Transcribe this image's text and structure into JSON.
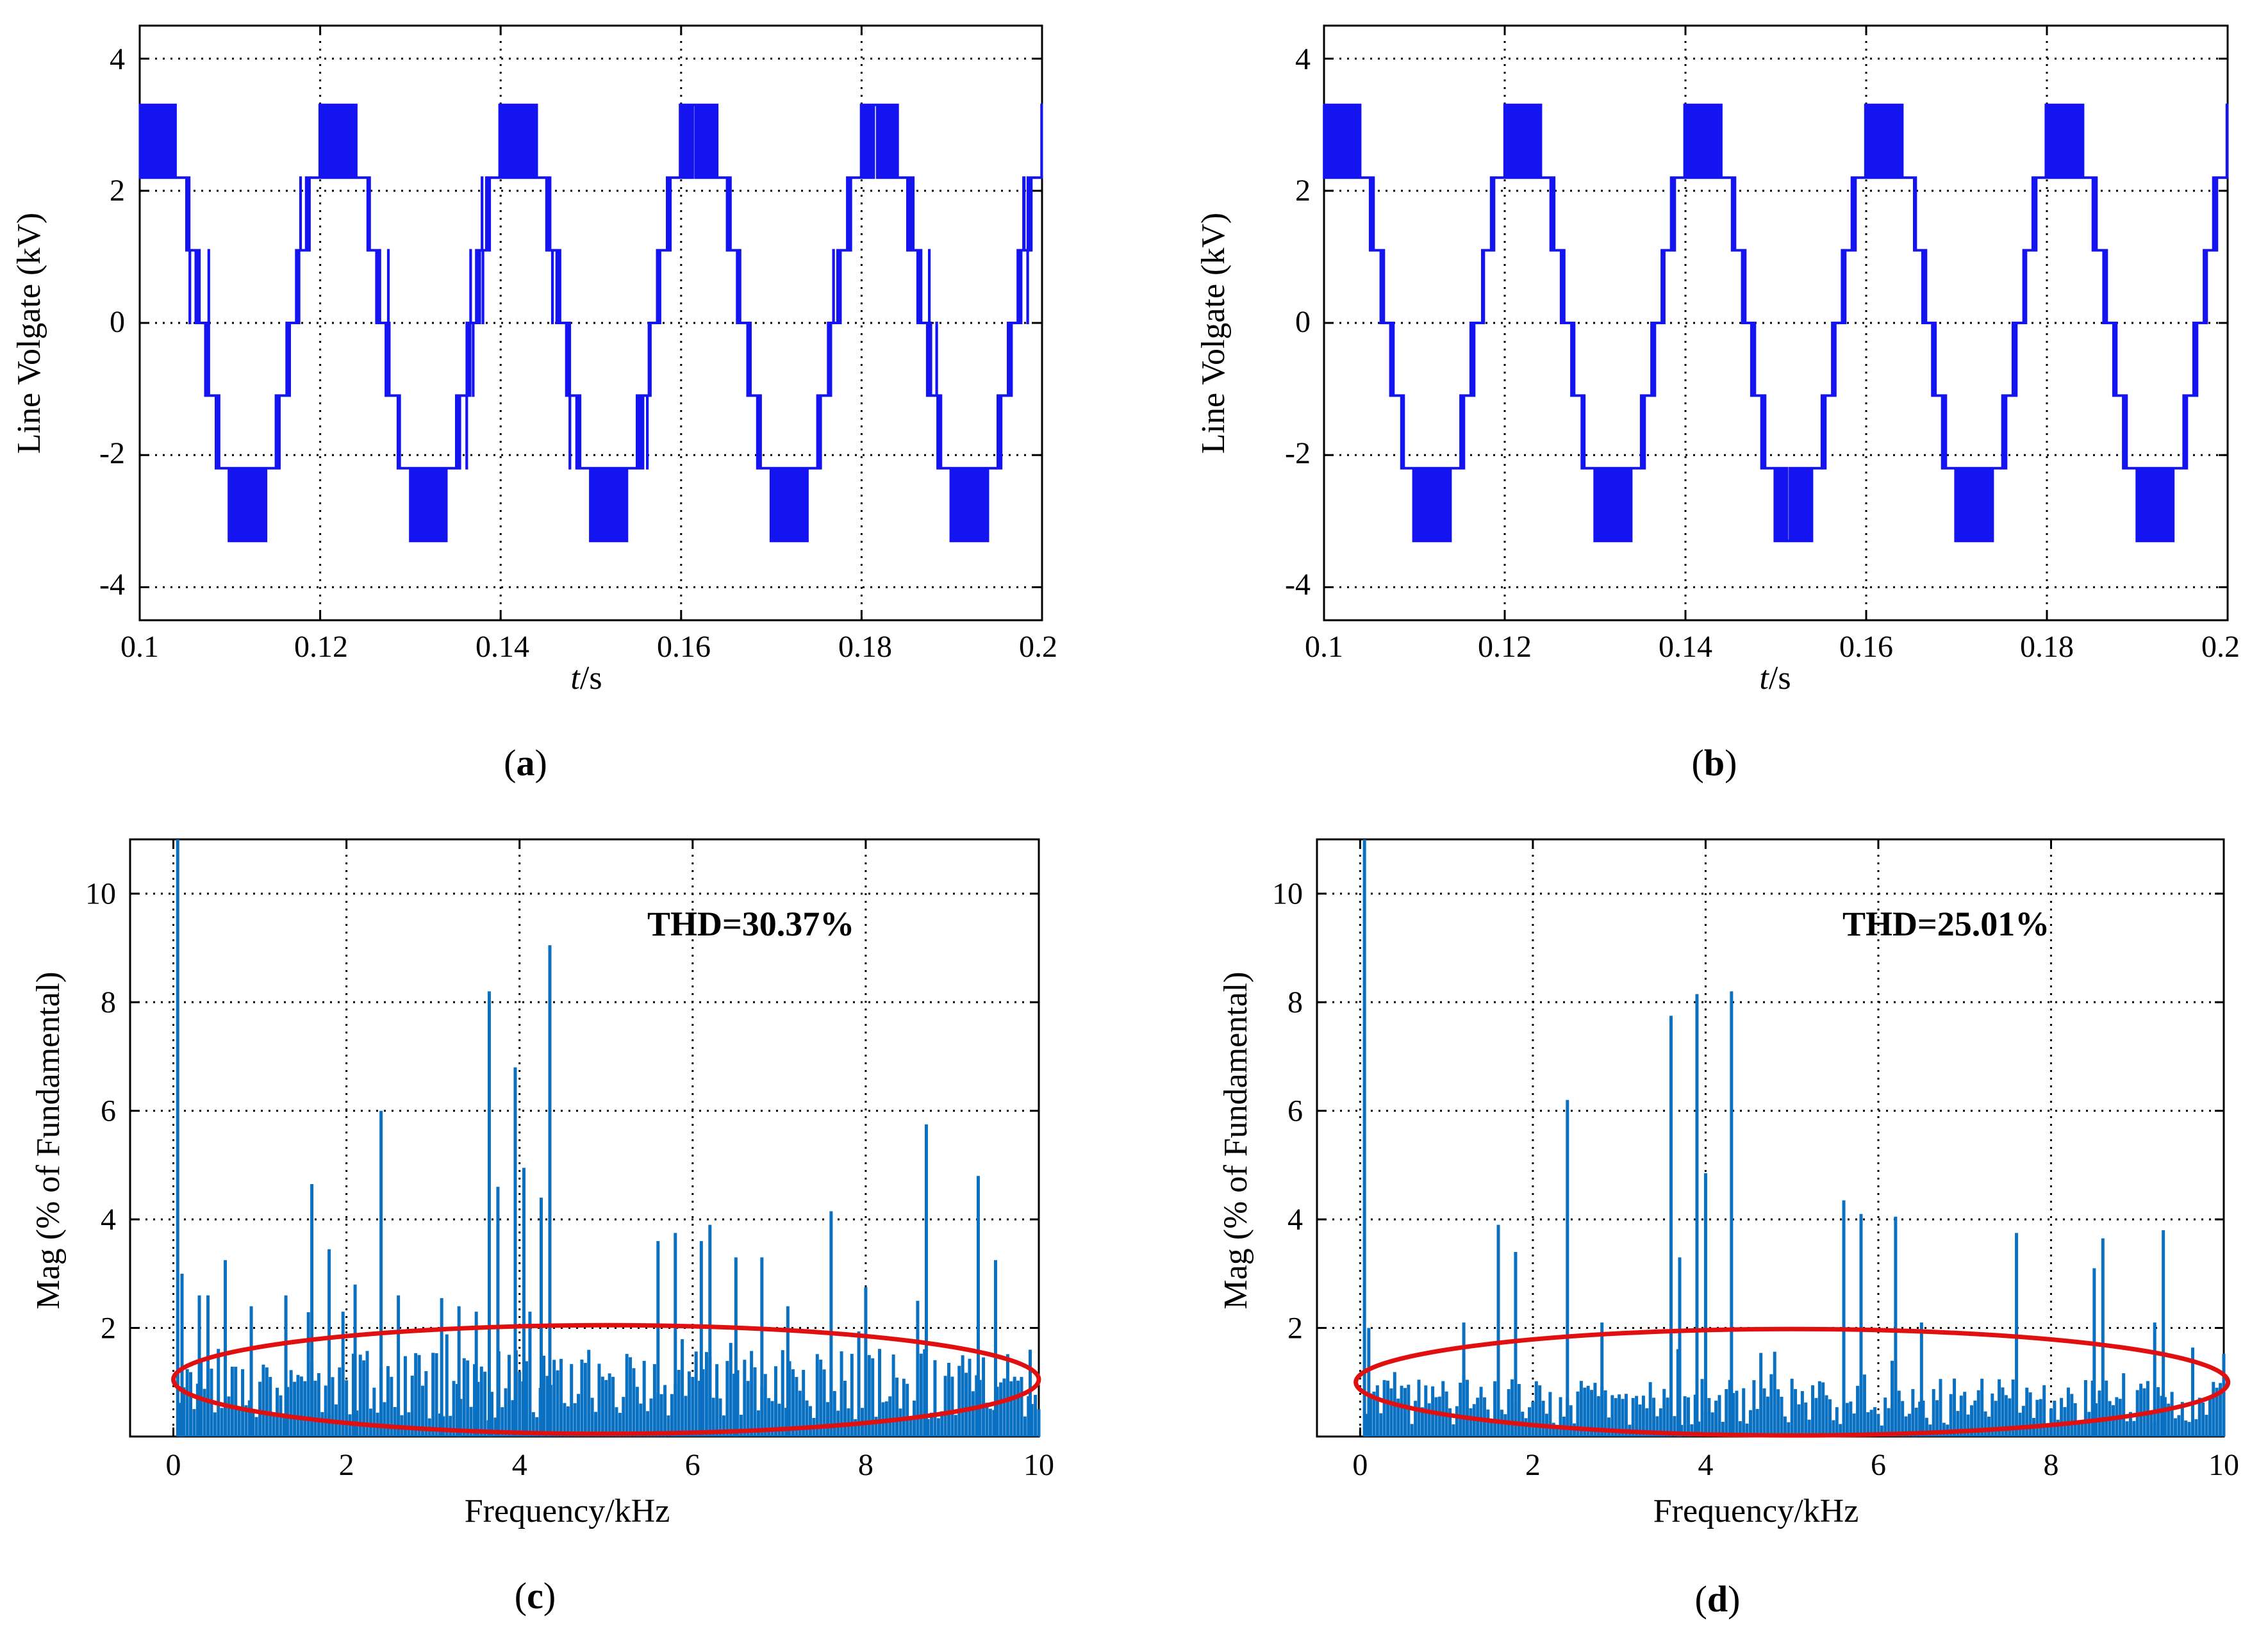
{
  "colors": {
    "wave": "#1414f0",
    "bar": "#0a70c2",
    "ellipse": "#e01010",
    "grid": "#000000"
  },
  "chart_data": [
    {
      "panel": "a",
      "type": "line",
      "caption": "(a)",
      "caption_letter": "a",
      "xlabel": "t/s",
      "xlabel_var": "t",
      "xlabel_unit": "/s",
      "ylabel": "Line Volgate (kV)",
      "xlim": [
        0.1,
        0.2
      ],
      "ylim": [
        -4.5,
        4.5
      ],
      "xticks": [
        "0.1",
        "0.12",
        "0.14",
        "0.16",
        "0.18",
        "0.2"
      ],
      "yticks": [
        "4",
        "2",
        "0",
        "-2",
        "-4"
      ],
      "ytick_values": [
        4,
        2,
        0,
        -2,
        -4
      ],
      "fundamental_hz": 50,
      "phase_offset_s": 0.0,
      "step_kv": 1.1,
      "max_kv": 3.3,
      "series": [
        {
          "name": "line voltage",
          "description": "7-level staircase, switching noise at transitions"
        }
      ]
    },
    {
      "panel": "b",
      "type": "line",
      "caption": "(b)",
      "caption_letter": "b",
      "xlabel": "t/s",
      "xlabel_var": "t",
      "xlabel_unit": "/s",
      "ylabel": "Line Volgate (kV)",
      "xlim": [
        0.1,
        0.2
      ],
      "ylim": [
        -4.5,
        4.5
      ],
      "xticks": [
        "0.1",
        "0.12",
        "0.14",
        "0.16",
        "0.18",
        "0.2"
      ],
      "yticks": [
        "4",
        "2",
        "0",
        "-2",
        "-4"
      ],
      "ytick_values": [
        4,
        2,
        0,
        -2,
        -4
      ],
      "fundamental_hz": 50,
      "phase_offset_s": 0.0,
      "step_kv": 1.1,
      "max_kv": 3.3,
      "series": [
        {
          "name": "line voltage",
          "description": "7-level staircase, cleaner switching"
        }
      ]
    },
    {
      "panel": "c",
      "type": "bar",
      "caption": "(c)",
      "caption_letter": "c",
      "xlabel": "Frequency/kHz",
      "ylabel": "Mag (% of Fundamental)",
      "xlim": [
        -0.5,
        10
      ],
      "ylim": [
        0,
        11
      ],
      "xticks": [
        "0",
        "2",
        "4",
        "6",
        "8",
        "10"
      ],
      "xtick_values": [
        0,
        2,
        4,
        6,
        8,
        10
      ],
      "yticks": [
        "10",
        "8",
        "6",
        "4",
        "2"
      ],
      "ytick_values": [
        10,
        8,
        6,
        4,
        2
      ],
      "annotation": "THD=30.37%",
      "bar_width_khz": 0.036,
      "fundamental_bar": {
        "x": 0.05,
        "y": 11
      },
      "peaks": [
        {
          "x": 0.1,
          "y": 3.0
        },
        {
          "x": 0.3,
          "y": 2.6
        },
        {
          "x": 0.4,
          "y": 2.6
        },
        {
          "x": 0.6,
          "y": 3.25
        },
        {
          "x": 0.9,
          "y": 2.4
        },
        {
          "x": 1.3,
          "y": 2.6
        },
        {
          "x": 1.6,
          "y": 4.65
        },
        {
          "x": 1.8,
          "y": 3.45
        },
        {
          "x": 2.1,
          "y": 2.8
        },
        {
          "x": 2.4,
          "y": 6.0
        },
        {
          "x": 2.6,
          "y": 2.6
        },
        {
          "x": 3.1,
          "y": 2.55
        },
        {
          "x": 3.3,
          "y": 2.4
        },
        {
          "x": 3.5,
          "y": 2.3
        },
        {
          "x": 3.65,
          "y": 8.2
        },
        {
          "x": 3.75,
          "y": 4.6
        },
        {
          "x": 3.95,
          "y": 6.8
        },
        {
          "x": 4.05,
          "y": 4.95
        },
        {
          "x": 4.25,
          "y": 4.4
        },
        {
          "x": 4.35,
          "y": 9.05
        },
        {
          "x": 5.6,
          "y": 3.6
        },
        {
          "x": 5.8,
          "y": 3.75
        },
        {
          "x": 6.1,
          "y": 3.6
        },
        {
          "x": 6.2,
          "y": 3.9
        },
        {
          "x": 6.5,
          "y": 3.3
        },
        {
          "x": 6.8,
          "y": 3.3
        },
        {
          "x": 7.1,
          "y": 2.4
        },
        {
          "x": 7.6,
          "y": 4.15
        },
        {
          "x": 8.0,
          "y": 2.75
        },
        {
          "x": 8.7,
          "y": 5.75
        },
        {
          "x": 8.6,
          "y": 2.5
        },
        {
          "x": 9.3,
          "y": 4.8
        },
        {
          "x": 9.5,
          "y": 3.25
        },
        {
          "x": 9.9,
          "y": 1.6
        }
      ],
      "noise_floor_mean": 1.2,
      "noise_seed": 17,
      "ellipse": {
        "cx": 5.0,
        "cy": 1.05,
        "rx": 5.0,
        "ry": 1.0
      }
    },
    {
      "panel": "d",
      "type": "bar",
      "caption": "(d)",
      "caption_letter": "d",
      "xlabel": "Frequency/kHz",
      "ylabel": "Mag (% of Fundamental)",
      "xlim": [
        -0.5,
        10
      ],
      "ylim": [
        0,
        11
      ],
      "xticks": [
        "0",
        "2",
        "4",
        "6",
        "8",
        "10"
      ],
      "xtick_values": [
        0,
        2,
        4,
        6,
        8,
        10
      ],
      "yticks": [
        "10",
        "8",
        "6",
        "4",
        "2"
      ],
      "ytick_values": [
        10,
        8,
        6,
        4,
        2
      ],
      "annotation": "THD=25.01%",
      "bar_width_khz": 0.036,
      "fundamental_bar": {
        "x": 0.05,
        "y": 11
      },
      "peaks": [
        {
          "x": 0.1,
          "y": 2.0
        },
        {
          "x": 1.2,
          "y": 2.1
        },
        {
          "x": 1.6,
          "y": 3.9
        },
        {
          "x": 1.8,
          "y": 3.4
        },
        {
          "x": 2.4,
          "y": 6.2
        },
        {
          "x": 2.8,
          "y": 2.1
        },
        {
          "x": 3.6,
          "y": 7.75
        },
        {
          "x": 3.7,
          "y": 3.3
        },
        {
          "x": 3.9,
          "y": 8.15
        },
        {
          "x": 4.0,
          "y": 4.85
        },
        {
          "x": 4.3,
          "y": 8.2
        },
        {
          "x": 5.6,
          "y": 4.35
        },
        {
          "x": 5.8,
          "y": 4.1
        },
        {
          "x": 6.2,
          "y": 4.05
        },
        {
          "x": 6.5,
          "y": 2.1
        },
        {
          "x": 7.6,
          "y": 3.75
        },
        {
          "x": 8.5,
          "y": 3.1
        },
        {
          "x": 8.6,
          "y": 3.65
        },
        {
          "x": 9.3,
          "y": 3.8
        },
        {
          "x": 9.2,
          "y": 2.1
        }
      ],
      "noise_floor_mean": 0.8,
      "noise_seed": 29,
      "ellipse": {
        "cx": 5.0,
        "cy": 1.0,
        "rx": 5.05,
        "ry": 0.98
      }
    }
  ]
}
